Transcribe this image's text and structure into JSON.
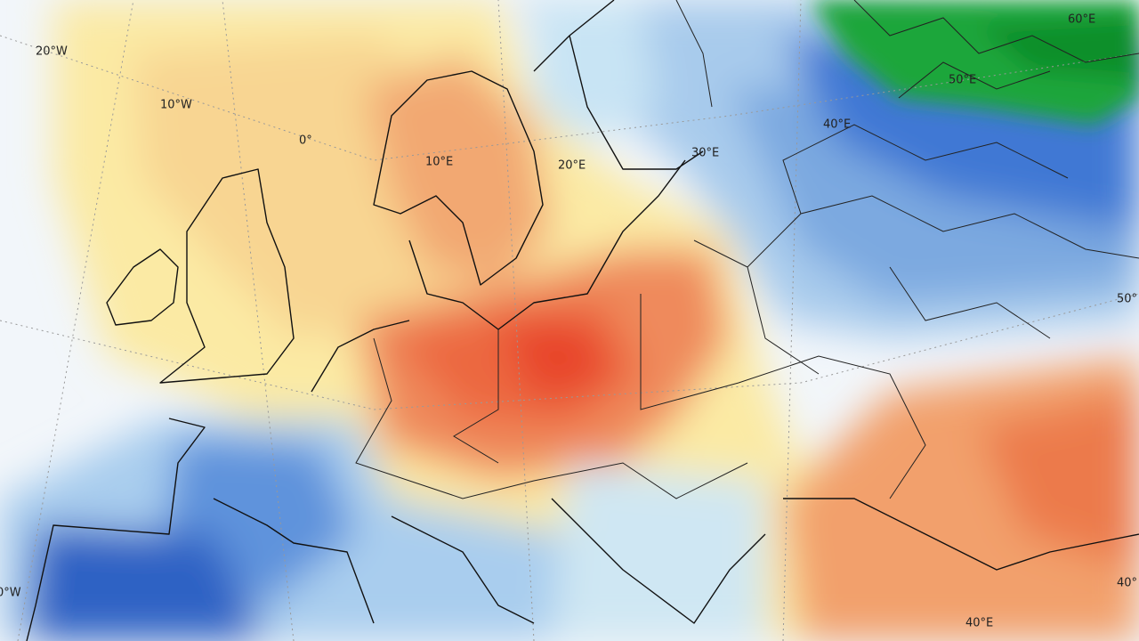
{
  "map": {
    "graticule_labels": [
      "20°W",
      "10°W",
      "0°",
      "10°E",
      "20°E",
      "30°E",
      "40°E",
      "50°E",
      "60°E",
      "50°",
      "40°",
      "40°E",
      "0°W"
    ]
  }
}
